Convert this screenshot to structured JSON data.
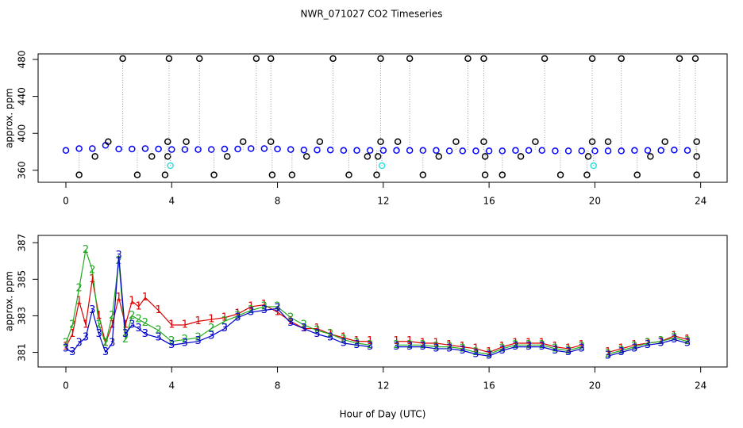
{
  "title": "NWR_071027  CO2 Timeseries",
  "chart_data": [
    {
      "type": "scatter",
      "ylabel": "approx. ppm",
      "xlim": [
        -1.05,
        25
      ],
      "xticks": [
        0,
        4,
        8,
        12,
        16,
        20,
        24
      ],
      "ylim": [
        347,
        486
      ],
      "yticks": [
        360,
        400,
        440,
        480
      ],
      "series": [
        {
          "color": "#0000ff",
          "x": [
            0,
            0.5,
            1,
            1.5,
            2,
            2.5,
            3,
            3.5,
            4,
            4.5,
            5,
            5.5,
            6,
            6.5,
            7,
            7.5,
            8,
            8.5,
            9,
            9.5,
            10,
            10.5,
            11,
            11.5,
            12,
            12.5,
            13,
            13.5,
            14,
            14.5,
            15,
            15.5,
            16,
            16.5,
            17,
            17.5,
            18,
            18.5,
            19,
            19.5,
            20,
            20.5,
            21,
            21.5,
            22,
            22.5,
            23,
            23.5
          ],
          "values": [
            381.5,
            383.5,
            383.5,
            387,
            383,
            383,
            383.5,
            383,
            382.5,
            382.5,
            382.5,
            382.5,
            383,
            383,
            383.5,
            383.5,
            383,
            382.5,
            382,
            382,
            382,
            381.5,
            381.5,
            381.5,
            381.5,
            381.5,
            381.5,
            381.5,
            381.5,
            381,
            381,
            381,
            381,
            381,
            381.5,
            381.5,
            381.5,
            381,
            381,
            381,
            381,
            381,
            381,
            381.5,
            381.5,
            381.5,
            382,
            381.5
          ]
        },
        {
          "color": "#000000",
          "x": [
            2.15,
            3.9,
            5.05,
            7.2,
            7.75,
            10.1,
            11.9,
            13,
            15.2,
            15.8,
            18.1,
            19.9,
            21,
            23.2,
            23.8,
            0.5,
            2.7,
            3.75,
            5.6,
            7.8,
            8.55,
            10.7,
            11.75,
            13.5,
            15.85,
            16.5,
            18.7,
            19.7,
            21.6,
            23.85,
            1.6,
            3.85,
            4.55,
            6.7,
            7.75,
            9.6,
            11.9,
            12.55,
            14.75,
            15.8,
            17.75,
            19.9,
            20.5,
            22.65,
            23.85,
            1.1,
            3.25,
            3.85,
            6.1,
            9.1,
            11.4,
            11.8,
            14.1,
            15.85,
            17.2,
            19.75,
            22.1,
            23.85
          ],
          "values": [
            481,
            481,
            481,
            481,
            481,
            481,
            481,
            481,
            481,
            481,
            481,
            481,
            481,
            481,
            481,
            355,
            355,
            355,
            355,
            355,
            355,
            355,
            355,
            355,
            355,
            355,
            355,
            355,
            355,
            355,
            391,
            391,
            391,
            391,
            391,
            391,
            391,
            391,
            391,
            391,
            391,
            391,
            391,
            391,
            391,
            375,
            375,
            375,
            375,
            375,
            375,
            375,
            375,
            375,
            375,
            375,
            375,
            375
          ]
        },
        {
          "color": "#33dddd",
          "x": [
            3.95,
            11.95,
            19.95
          ],
          "values": [
            365,
            365,
            365
          ]
        }
      ]
    },
    {
      "type": "line",
      "ylabel": "approx. ppm",
      "xlabel": "Hour of Day (UTC)",
      "xlim": [
        -1.05,
        25
      ],
      "xticks": [
        0,
        4,
        8,
        12,
        16,
        20,
        24
      ],
      "ylim": [
        380.2,
        387.4
      ],
      "yticks": [
        381,
        383,
        385,
        387
      ],
      "x": [
        0,
        0.25,
        0.5,
        0.75,
        1,
        1.25,
        1.5,
        1.75,
        2,
        2.25,
        2.5,
        2.75,
        3,
        3.5,
        4,
        4.5,
        5,
        5.5,
        6,
        6.5,
        7,
        7.5,
        8,
        8.5,
        9,
        9.5,
        10,
        10.5,
        11,
        11.5,
        12,
        12.5,
        13,
        13.5,
        14,
        14.5,
        15,
        15.5,
        16,
        16.5,
        17,
        17.5,
        18,
        18.5,
        19,
        19.5,
        20,
        20.5,
        21,
        21.5,
        22,
        22.5,
        23,
        23.5
      ],
      "series": [
        {
          "marker": "1",
          "color": "#dd0000",
          "values": [
            381.3,
            382,
            383.8,
            382.5,
            385,
            383,
            381.5,
            382.5,
            384,
            382.5,
            383.8,
            383.5,
            384,
            383.3,
            382.5,
            382.5,
            382.7,
            382.8,
            382.9,
            383.1,
            383.5,
            383.6,
            383.2,
            382.7,
            382.3,
            382.3,
            382,
            381.8,
            381.6,
            381.6,
            null,
            381.6,
            381.6,
            381.5,
            381.5,
            381.4,
            381.3,
            381.2,
            381,
            381.3,
            381.5,
            381.5,
            381.5,
            381.3,
            381.2,
            381.4,
            null,
            381,
            381.2,
            381.4,
            381.5,
            381.6,
            381.9,
            381.7
          ]
        },
        {
          "marker": "2",
          "color": "#22aa22",
          "values": [
            381.5,
            382.5,
            384.5,
            386.6,
            385.5,
            382.5,
            381.5,
            383,
            386,
            381.7,
            383,
            382.8,
            382.6,
            382.2,
            381.6,
            381.7,
            381.8,
            382.3,
            382.7,
            383,
            383.3,
            383.5,
            383.5,
            382.9,
            382.5,
            382.2,
            382,
            381.7,
            381.5,
            381.4,
            null,
            381.4,
            381.4,
            381.4,
            381.3,
            381.3,
            381.2,
            381,
            380.9,
            381.2,
            381.4,
            381.4,
            381.4,
            381.2,
            381.1,
            381.3,
            null,
            380.9,
            381.1,
            381.3,
            381.5,
            381.6,
            381.8,
            381.6
          ]
        },
        {
          "marker": "3",
          "color": "#0000cc",
          "values": [
            381.2,
            381,
            381.5,
            381.8,
            383.3,
            382,
            381,
            381.5,
            386.3,
            382,
            382.5,
            382.3,
            382,
            381.8,
            381.4,
            381.5,
            381.6,
            381.9,
            382.3,
            382.9,
            383.2,
            383.3,
            383.4,
            382.6,
            382.3,
            382,
            381.8,
            381.5,
            381.4,
            381.3,
            null,
            381.3,
            381.3,
            381.3,
            381.2,
            381.2,
            381.1,
            380.9,
            380.8,
            381.1,
            381.3,
            381.3,
            381.3,
            381.1,
            381,
            381.2,
            null,
            380.8,
            381,
            381.2,
            381.4,
            381.5,
            381.7,
            381.5
          ]
        }
      ]
    }
  ]
}
